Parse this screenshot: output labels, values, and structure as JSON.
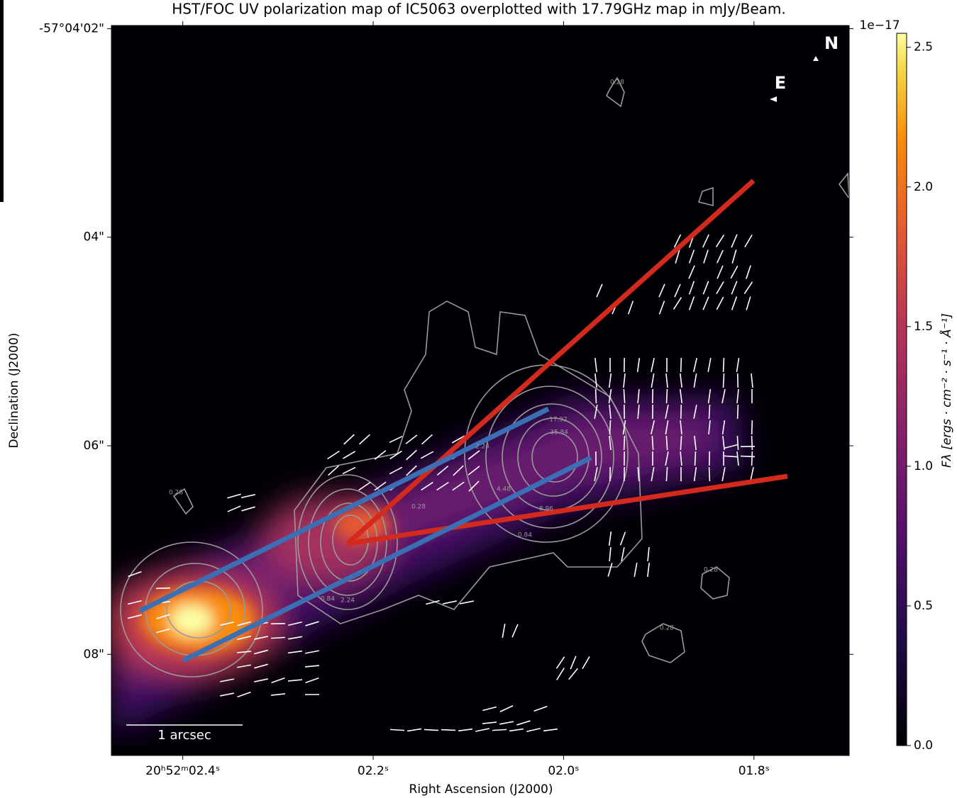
{
  "chart_data": {
    "type": "image",
    "title": "HST/FOC UV polarization map of IC5063 overplotted with 17.79GHz map in mJy/Beam.",
    "x_label": "Right Ascension (J2000)",
    "y_label": "Declination (J2000)",
    "xlim": [
      2.475,
      1.7
    ],
    "xticks": [
      {
        "value": 2.4,
        "label": "20ʰ52ᵐ02.4ˢ"
      },
      {
        "value": 2.2,
        "label": "02.2ˢ"
      },
      {
        "value": 2.0,
        "label": "02.0ˢ"
      },
      {
        "value": 1.8,
        "label": "01.8ˢ"
      }
    ],
    "ylim": [
      8.97,
      1.97
    ],
    "yticks": [
      {
        "value": 2,
        "label": "-57°04'02\""
      },
      {
        "value": 4,
        "label": "04\""
      },
      {
        "value": 6,
        "label": "06\""
      },
      {
        "value": 8,
        "label": "08\""
      }
    ],
    "colorbar": {
      "label": "Fλ [ergs · cm⁻² · s⁻¹ · Å⁻¹]",
      "offset": "1e−17",
      "clim": [
        0,
        2.55
      ],
      "ticks": [
        {
          "value": 0,
          "label": "0.0"
        },
        0.5,
        {
          "value": 1,
          "label": "1.0"
        },
        1.5,
        {
          "value": 2,
          "label": "2.0"
        },
        2.5
      ]
    },
    "contour_levels": [
      0.28,
      0.84,
      2.24,
      4.48,
      8.96,
      17.92,
      35.84
    ],
    "annotations": {
      "north": "N",
      "east": "E",
      "scale_bar": "1 arcsec"
    }
  }
}
